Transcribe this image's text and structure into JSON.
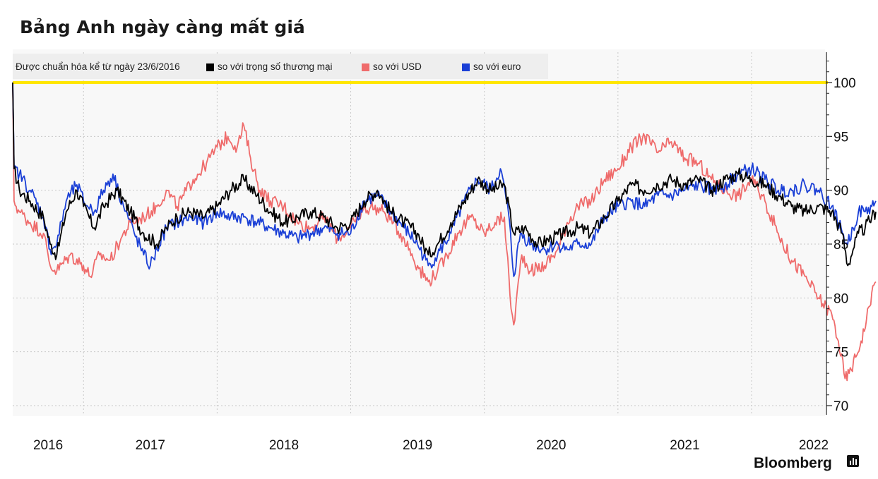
{
  "title": "Bảng Anh ngày càng mất giá",
  "legend": {
    "note": "Được chuẩn hóa kể từ ngày 23/6/2016",
    "colors": {
      "black": "#000000",
      "red": "#ef6b6b",
      "blue": "#1a3fd6"
    }
  },
  "source": "Bloomberg",
  "chart_data": {
    "type": "line",
    "ylim": [
      70,
      102
    ],
    "yticks": [
      70,
      75,
      80,
      85,
      90,
      95,
      100
    ],
    "xticks": [
      "2016",
      "2017",
      "2018",
      "2019",
      "2020",
      "2021",
      "2022"
    ],
    "xrange": [
      2016.47,
      2022.93
    ],
    "reference_line": {
      "value": 100,
      "color": "#ffe600"
    },
    "grid": "dotted",
    "series": [
      {
        "name": "so với trọng số thương mại",
        "color": "#000000",
        "points": [
          [
            2016.47,
            100
          ],
          [
            2016.48,
            92
          ],
          [
            2016.52,
            90
          ],
          [
            2016.6,
            89
          ],
          [
            2016.7,
            87.5
          ],
          [
            2016.75,
            85
          ],
          [
            2016.8,
            84
          ],
          [
            2016.87,
            88
          ],
          [
            2016.95,
            90
          ],
          [
            2017.0,
            88.5
          ],
          [
            2017.08,
            86.5
          ],
          [
            2017.15,
            88.5
          ],
          [
            2017.25,
            90
          ],
          [
            2017.35,
            88
          ],
          [
            2017.45,
            86
          ],
          [
            2017.55,
            85
          ],
          [
            2017.62,
            86.5
          ],
          [
            2017.7,
            87.5
          ],
          [
            2017.8,
            88
          ],
          [
            2017.9,
            87.5
          ],
          [
            2018.0,
            88.5
          ],
          [
            2018.1,
            90
          ],
          [
            2018.2,
            91
          ],
          [
            2018.3,
            89.5
          ],
          [
            2018.4,
            88
          ],
          [
            2018.5,
            87
          ],
          [
            2018.6,
            87.5
          ],
          [
            2018.7,
            88
          ],
          [
            2018.8,
            87.5
          ],
          [
            2018.9,
            86.5
          ],
          [
            2019.0,
            87
          ],
          [
            2019.1,
            89
          ],
          [
            2019.2,
            90
          ],
          [
            2019.3,
            88
          ],
          [
            2019.4,
            87
          ],
          [
            2019.5,
            86
          ],
          [
            2019.58,
            84
          ],
          [
            2019.65,
            85
          ],
          [
            2019.75,
            87
          ],
          [
            2019.85,
            89
          ],
          [
            2019.95,
            91
          ],
          [
            2020.05,
            90
          ],
          [
            2020.15,
            90.5
          ],
          [
            2020.22,
            86
          ],
          [
            2020.3,
            86.5
          ],
          [
            2020.4,
            85
          ],
          [
            2020.5,
            85.5
          ],
          [
            2020.6,
            86
          ],
          [
            2020.7,
            86.5
          ],
          [
            2020.8,
            86
          ],
          [
            2020.9,
            87.5
          ],
          [
            2021.0,
            89
          ],
          [
            2021.1,
            90.5
          ],
          [
            2021.2,
            90
          ],
          [
            2021.3,
            90.5
          ],
          [
            2021.4,
            91
          ],
          [
            2021.5,
            90.5
          ],
          [
            2021.6,
            91
          ],
          [
            2021.7,
            90
          ],
          [
            2021.8,
            91
          ],
          [
            2021.9,
            91.5
          ],
          [
            2022.0,
            91
          ],
          [
            2022.1,
            90.5
          ],
          [
            2022.2,
            89.5
          ],
          [
            2022.3,
            88.5
          ],
          [
            2022.4,
            88
          ],
          [
            2022.5,
            88.5
          ],
          [
            2022.6,
            88
          ],
          [
            2022.68,
            86
          ],
          [
            2022.72,
            83
          ],
          [
            2022.76,
            84.5
          ],
          [
            2022.8,
            86
          ],
          [
            2022.85,
            86.5
          ],
          [
            2022.9,
            87.5
          ],
          [
            2022.93,
            88
          ]
        ]
      },
      {
        "name": "so với USD",
        "color": "#ef6b6b",
        "points": [
          [
            2016.47,
            100
          ],
          [
            2016.48,
            89
          ],
          [
            2016.52,
            88
          ],
          [
            2016.6,
            87
          ],
          [
            2016.7,
            86
          ],
          [
            2016.75,
            83
          ],
          [
            2016.8,
            82.5
          ],
          [
            2016.9,
            84
          ],
          [
            2017.0,
            83
          ],
          [
            2017.05,
            82
          ],
          [
            2017.12,
            84
          ],
          [
            2017.2,
            83.5
          ],
          [
            2017.28,
            85.5
          ],
          [
            2017.35,
            87
          ],
          [
            2017.45,
            87.5
          ],
          [
            2017.55,
            88.5
          ],
          [
            2017.62,
            90
          ],
          [
            2017.7,
            88.5
          ],
          [
            2017.75,
            89.5
          ],
          [
            2017.82,
            91
          ],
          [
            2017.92,
            92.5
          ],
          [
            2018.0,
            94
          ],
          [
            2018.08,
            95
          ],
          [
            2018.15,
            94
          ],
          [
            2018.2,
            96
          ],
          [
            2018.25,
            93
          ],
          [
            2018.32,
            90
          ],
          [
            2018.4,
            89
          ],
          [
            2018.5,
            88.5
          ],
          [
            2018.6,
            87
          ],
          [
            2018.7,
            86.5
          ],
          [
            2018.8,
            87.5
          ],
          [
            2018.9,
            85.5
          ],
          [
            2019.0,
            86.5
          ],
          [
            2019.08,
            88
          ],
          [
            2019.15,
            88.5
          ],
          [
            2019.25,
            88
          ],
          [
            2019.32,
            87
          ],
          [
            2019.4,
            85.5
          ],
          [
            2019.5,
            83
          ],
          [
            2019.58,
            81.5
          ],
          [
            2019.65,
            82.5
          ],
          [
            2019.72,
            84
          ],
          [
            2019.8,
            86
          ],
          [
            2019.9,
            87.5
          ],
          [
            2020.0,
            86
          ],
          [
            2020.08,
            87
          ],
          [
            2020.15,
            87.5
          ],
          [
            2020.2,
            79
          ],
          [
            2020.22,
            77.5
          ],
          [
            2020.28,
            84
          ],
          [
            2020.35,
            82.5
          ],
          [
            2020.45,
            83
          ],
          [
            2020.55,
            84.5
          ],
          [
            2020.62,
            87
          ],
          [
            2020.7,
            88.5
          ],
          [
            2020.8,
            89
          ],
          [
            2020.9,
            91
          ],
          [
            2021.0,
            92
          ],
          [
            2021.1,
            94
          ],
          [
            2021.2,
            95
          ],
          [
            2021.3,
            93.5
          ],
          [
            2021.4,
            94.5
          ],
          [
            2021.5,
            93
          ],
          [
            2021.6,
            92.5
          ],
          [
            2021.7,
            91
          ],
          [
            2021.8,
            90
          ],
          [
            2021.9,
            89.5
          ],
          [
            2022.0,
            91
          ],
          [
            2022.05,
            90
          ],
          [
            2022.1,
            89
          ],
          [
            2022.2,
            86
          ],
          [
            2022.3,
            83.5
          ],
          [
            2022.4,
            82
          ],
          [
            2022.5,
            80
          ],
          [
            2022.6,
            78.5
          ],
          [
            2022.65,
            76
          ],
          [
            2022.7,
            72.5
          ],
          [
            2022.73,
            73
          ],
          [
            2022.78,
            74.5
          ],
          [
            2022.82,
            76
          ],
          [
            2022.86,
            78
          ],
          [
            2022.9,
            80.5
          ],
          [
            2022.93,
            81.5
          ]
        ]
      },
      {
        "name": "so với euro",
        "color": "#1a3fd6",
        "points": [
          [
            2016.47,
            100
          ],
          [
            2016.48,
            92
          ],
          [
            2016.52,
            91.5
          ],
          [
            2016.6,
            90
          ],
          [
            2016.7,
            87.5
          ],
          [
            2016.75,
            84.5
          ],
          [
            2016.8,
            85
          ],
          [
            2016.87,
            89
          ],
          [
            2016.95,
            90.5
          ],
          [
            2017.0,
            89
          ],
          [
            2017.08,
            88
          ],
          [
            2017.15,
            90
          ],
          [
            2017.22,
            91.5
          ],
          [
            2017.3,
            88.5
          ],
          [
            2017.38,
            86
          ],
          [
            2017.45,
            84
          ],
          [
            2017.5,
            83
          ],
          [
            2017.55,
            84.5
          ],
          [
            2017.62,
            86.5
          ],
          [
            2017.7,
            87
          ],
          [
            2017.8,
            87.5
          ],
          [
            2017.9,
            87
          ],
          [
            2018.0,
            88
          ],
          [
            2018.1,
            87.5
          ],
          [
            2018.2,
            87.5
          ],
          [
            2018.3,
            87
          ],
          [
            2018.4,
            86.5
          ],
          [
            2018.5,
            86
          ],
          [
            2018.6,
            85.5
          ],
          [
            2018.7,
            86
          ],
          [
            2018.8,
            86.5
          ],
          [
            2018.9,
            86
          ],
          [
            2019.0,
            86
          ],
          [
            2019.1,
            89
          ],
          [
            2019.2,
            89.5
          ],
          [
            2019.3,
            88
          ],
          [
            2019.4,
            86.5
          ],
          [
            2019.5,
            85
          ],
          [
            2019.58,
            83
          ],
          [
            2019.65,
            84
          ],
          [
            2019.75,
            86
          ],
          [
            2019.85,
            89
          ],
          [
            2019.95,
            91
          ],
          [
            2020.05,
            90
          ],
          [
            2020.12,
            92
          ],
          [
            2020.18,
            88
          ],
          [
            2020.22,
            82
          ],
          [
            2020.27,
            86
          ],
          [
            2020.35,
            85
          ],
          [
            2020.45,
            84.5
          ],
          [
            2020.55,
            85
          ],
          [
            2020.62,
            84.5
          ],
          [
            2020.7,
            85
          ],
          [
            2020.8,
            85
          ],
          [
            2020.9,
            87.5
          ],
          [
            2021.0,
            88.5
          ],
          [
            2021.1,
            89
          ],
          [
            2021.2,
            88.5
          ],
          [
            2021.3,
            89.5
          ],
          [
            2021.4,
            89.5
          ],
          [
            2021.5,
            90
          ],
          [
            2021.6,
            90.5
          ],
          [
            2021.7,
            90
          ],
          [
            2021.8,
            90.5
          ],
          [
            2021.9,
            91.5
          ],
          [
            2022.0,
            92
          ],
          [
            2022.1,
            91
          ],
          [
            2022.2,
            90
          ],
          [
            2022.3,
            90
          ],
          [
            2022.4,
            90.5
          ],
          [
            2022.5,
            90
          ],
          [
            2022.6,
            88.5
          ],
          [
            2022.68,
            86
          ],
          [
            2022.72,
            85
          ],
          [
            2022.76,
            86.5
          ],
          [
            2022.8,
            88
          ],
          [
            2022.85,
            88
          ],
          [
            2022.9,
            88.5
          ],
          [
            2022.93,
            89
          ]
        ]
      }
    ]
  }
}
